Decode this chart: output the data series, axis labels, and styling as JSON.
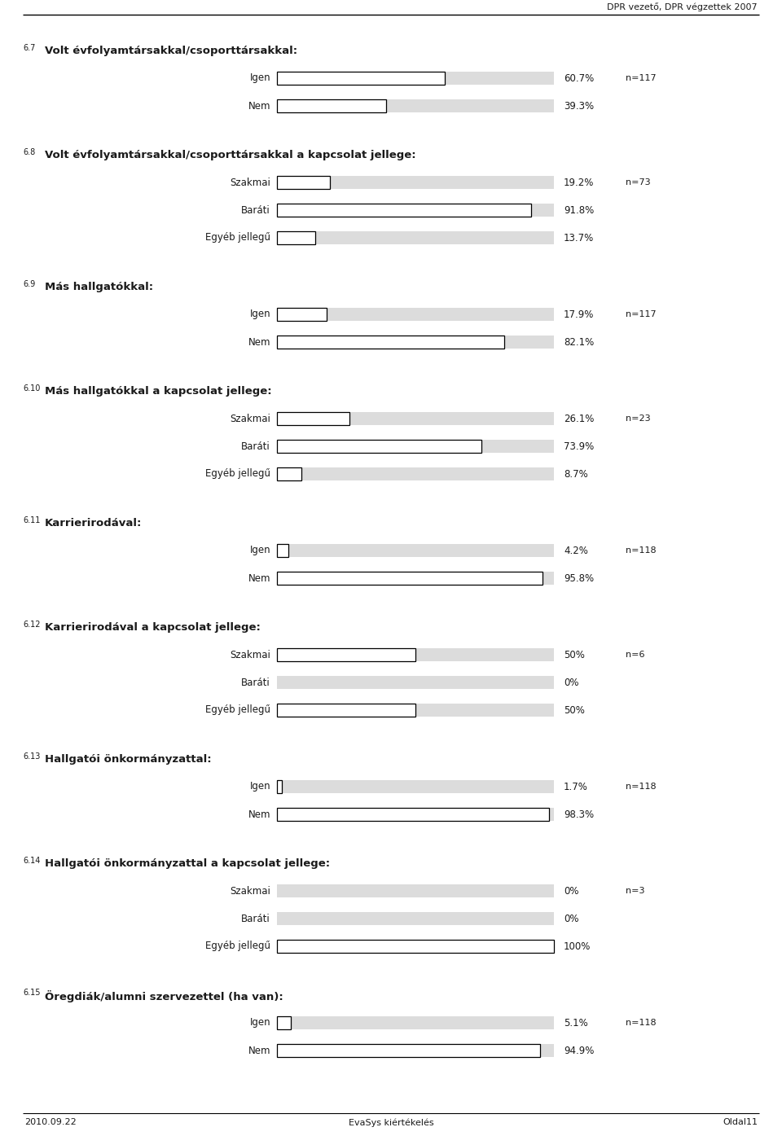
{
  "header_right": "DPR vezető, DPR végzettek 2007",
  "footer_left": "2010.09.22",
  "footer_center": "EvaSys kiértékelés",
  "footer_right": "Oldal11",
  "sections": [
    {
      "number": "6.7",
      "title": "Volt évfolyamtársakkal/csoporttársakkal:",
      "n_label": "n=117",
      "bars": [
        {
          "label": "Igen",
          "value": 60.7
        },
        {
          "label": "Nem",
          "value": 39.3
        }
      ]
    },
    {
      "number": "6.8",
      "title": "Volt évfolyamtársakkal/csoporttársakkal a kapcsolat jellege:",
      "n_label": "n=73",
      "bars": [
        {
          "label": "Szakmai",
          "value": 19.2
        },
        {
          "label": "Baráti",
          "value": 91.8
        },
        {
          "label": "Egyéb jellegű",
          "value": 13.7
        }
      ]
    },
    {
      "number": "6.9",
      "title": "Más hallgatókkal:",
      "n_label": "n=117",
      "bars": [
        {
          "label": "Igen",
          "value": 17.9
        },
        {
          "label": "Nem",
          "value": 82.1
        }
      ]
    },
    {
      "number": "6.10",
      "title": "Más hallgatókkal a kapcsolat jellege:",
      "n_label": "n=23",
      "bars": [
        {
          "label": "Szakmai",
          "value": 26.1
        },
        {
          "label": "Baráti",
          "value": 73.9
        },
        {
          "label": "Egyéb jellegű",
          "value": 8.7
        }
      ]
    },
    {
      "number": "6.11",
      "title": "Karrierirodával:",
      "n_label": "n=118",
      "bars": [
        {
          "label": "Igen",
          "value": 4.2
        },
        {
          "label": "Nem",
          "value": 95.8
        }
      ]
    },
    {
      "number": "6.12",
      "title": "Karrierirodával a kapcsolat jellege:",
      "n_label": "n=6",
      "bars": [
        {
          "label": "Szakmai",
          "value": 50.0
        },
        {
          "label": "Baráti",
          "value": 0.0
        },
        {
          "label": "Egyéb jellegű",
          "value": 50.0
        }
      ]
    },
    {
      "number": "6.13",
      "title": "Hallgatói önkormányzattal:",
      "n_label": "n=118",
      "bars": [
        {
          "label": "Igen",
          "value": 1.7
        },
        {
          "label": "Nem",
          "value": 98.3
        }
      ]
    },
    {
      "number": "6.14",
      "title": "Hallgatói önkormányzattal a kapcsolat jellege:",
      "n_label": "n=3",
      "bars": [
        {
          "label": "Szakmai",
          "value": 0.0
        },
        {
          "label": "Baráti",
          "value": 0.0
        },
        {
          "label": "Egyéb jellegű",
          "value": 100.0
        }
      ]
    },
    {
      "number": "6.15",
      "title": "Öregdiák/alumni szervezettel (ha van):",
      "n_label": "n=118",
      "bars": [
        {
          "label": "Igen",
          "value": 5.1
        },
        {
          "label": "Nem",
          "value": 94.9
        }
      ]
    }
  ],
  "bar_bg_color": "#dcdcdc",
  "bar_fill_color": "#ffffff",
  "bar_edge_color": "#000000",
  "text_color": "#1a1a1a",
  "background_color": "#ffffff"
}
